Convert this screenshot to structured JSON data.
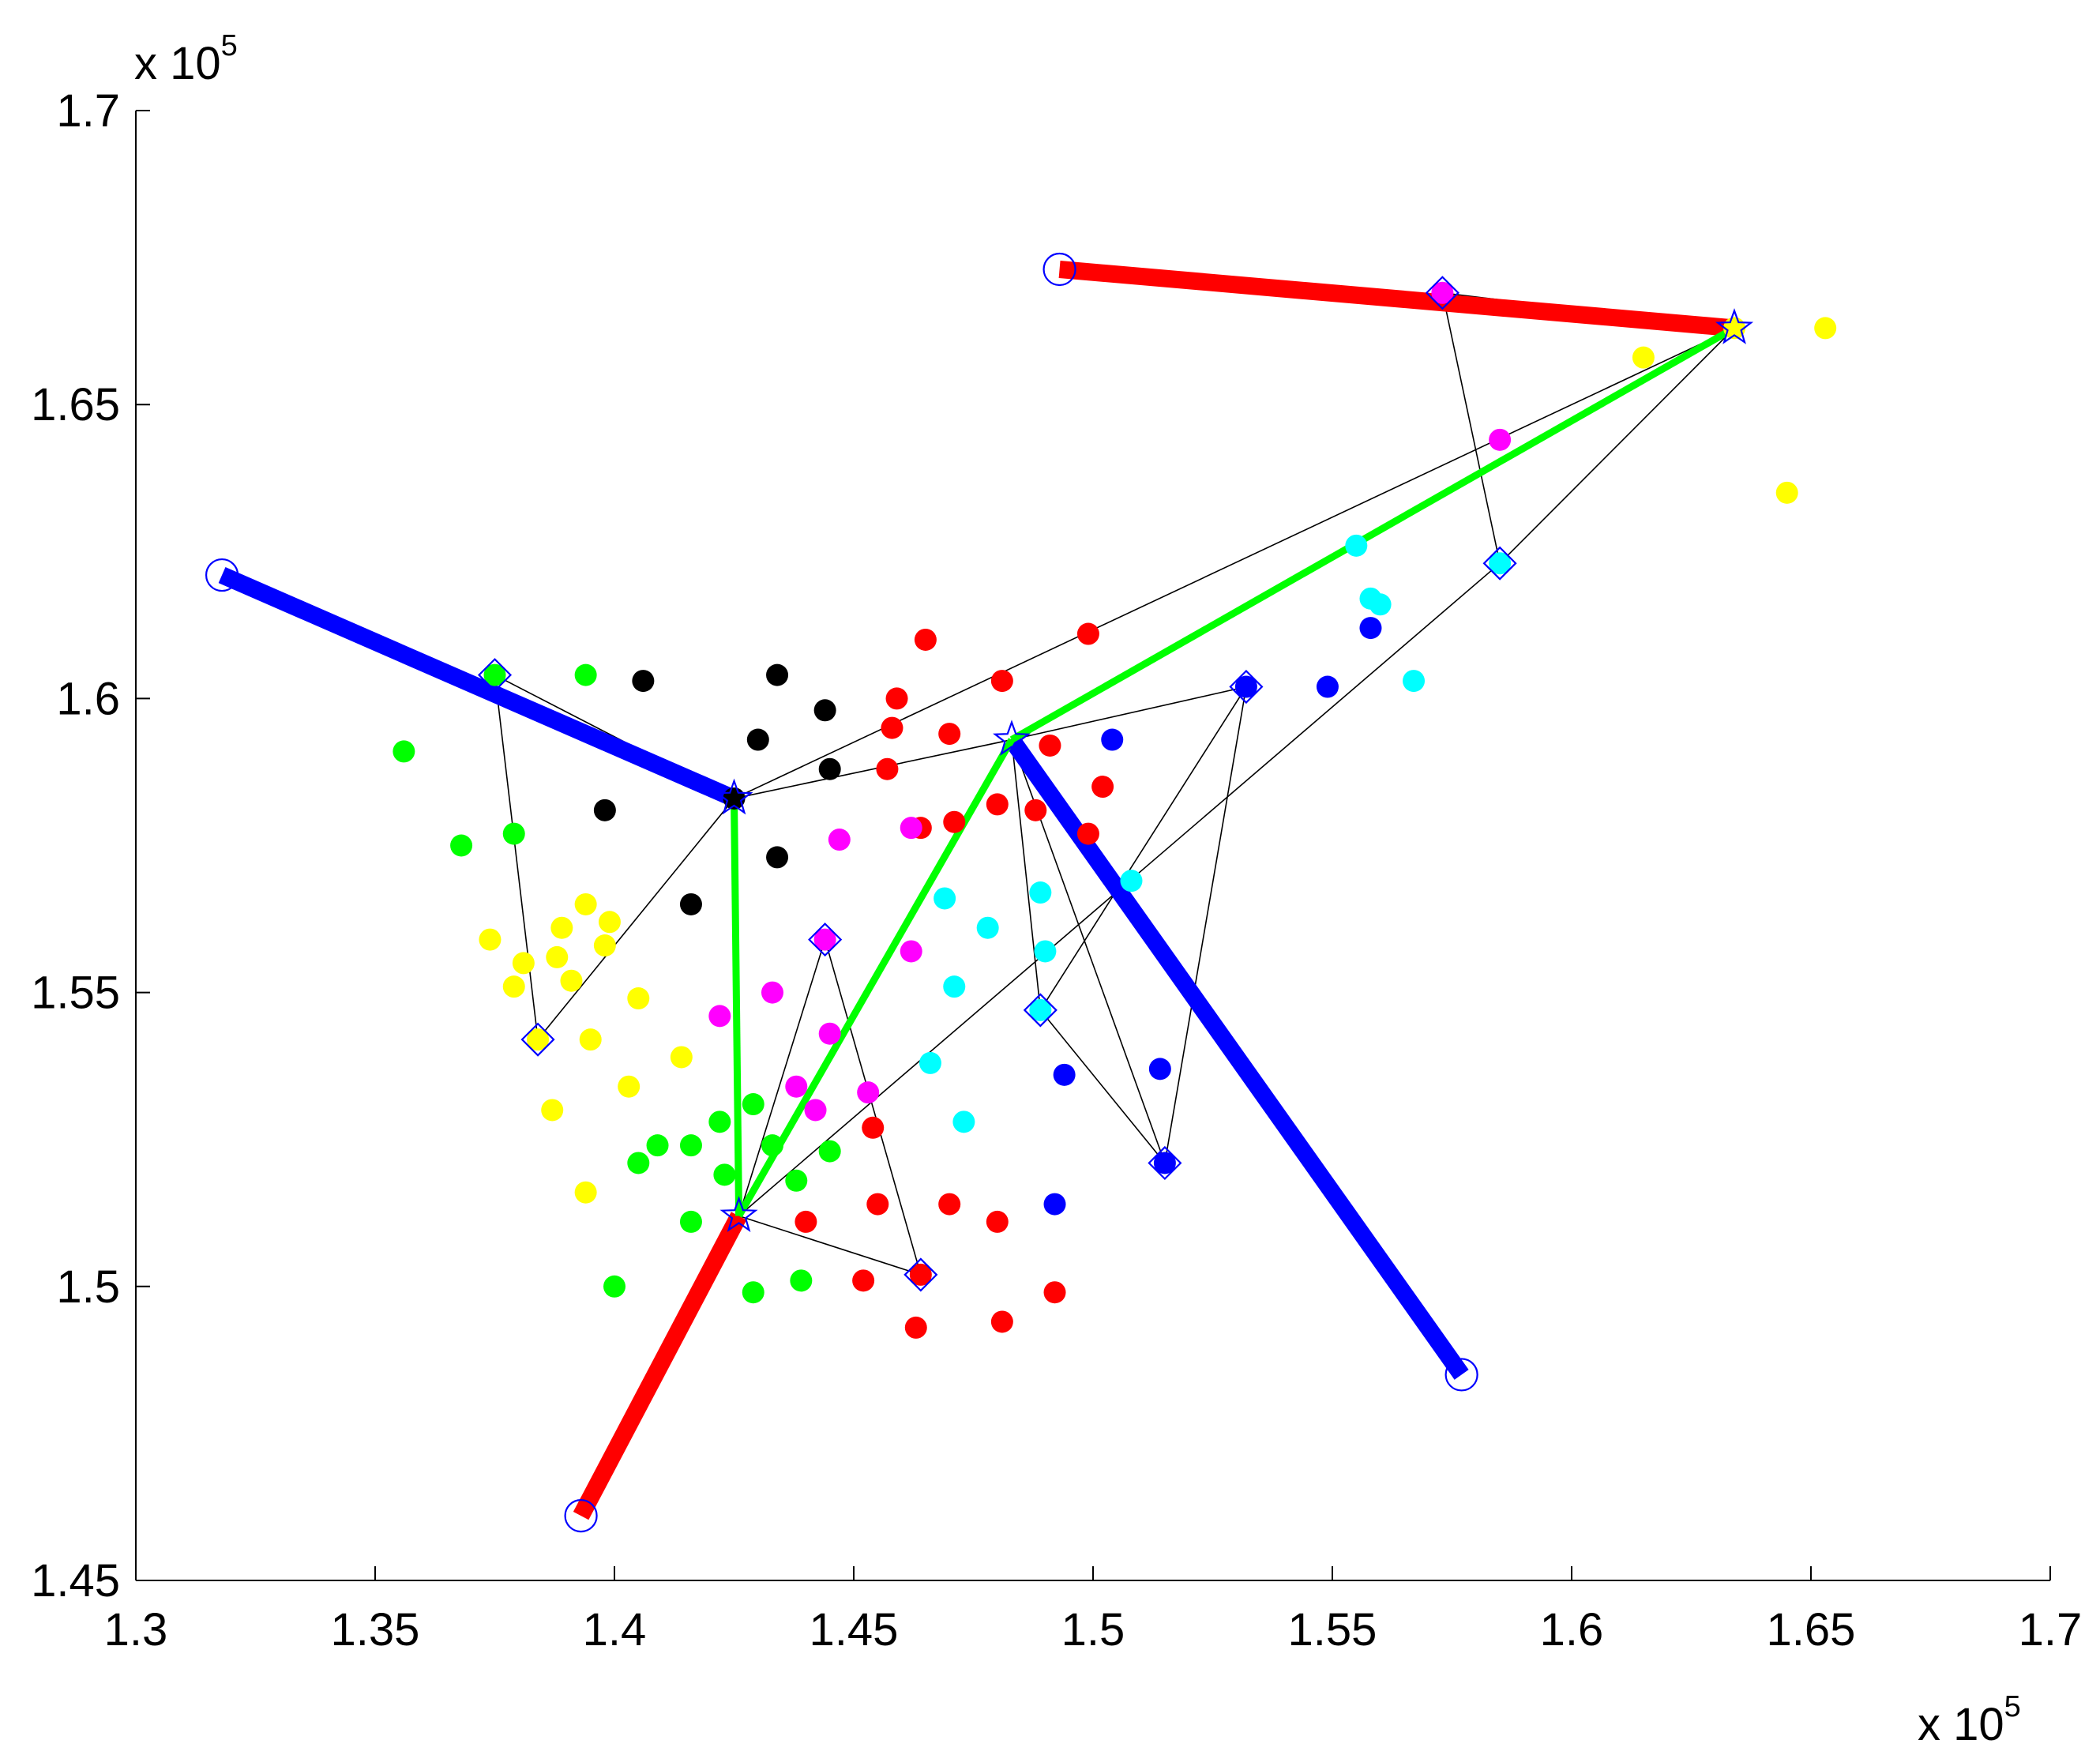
{
  "chart_data": {
    "type": "scatter",
    "title": "",
    "xlabel": "",
    "ylabel": "",
    "xlim": [
      130000,
      170000
    ],
    "ylim": [
      145000,
      170000
    ],
    "x_ticks": [
      130000,
      135000,
      140000,
      145000,
      150000,
      155000,
      160000,
      165000,
      170000
    ],
    "y_ticks": [
      145000,
      150000,
      155000,
      160000,
      165000,
      170000
    ],
    "x_tick_labels": [
      "1.3",
      "1.35",
      "1.4",
      "1.45",
      "1.5",
      "1.55",
      "1.6",
      "1.65",
      "1.7"
    ],
    "y_tick_labels": [
      "1.45",
      "1.5",
      "1.55",
      "1.6",
      "1.65",
      "1.7"
    ],
    "x_exponent": {
      "base": "x 10",
      "power": "5"
    },
    "y_exponent": {
      "base": "x 10",
      "power": "5"
    },
    "grid": false,
    "colors": {
      "red": "#ff0000",
      "blue": "#0000ff",
      "green": "#00ff00",
      "yellow": "#ffff00",
      "cyan": "#00ffff",
      "magenta": "#ff00ff",
      "black": "#000000",
      "marker": "#0000ff"
    },
    "points": {
      "red": [
        [
          146500,
          161000
        ],
        [
          145900,
          160000
        ],
        [
          145800,
          159500
        ],
        [
          145700,
          158800
        ],
        [
          147000,
          159400
        ],
        [
          148100,
          160300
        ],
        [
          149900,
          161100
        ],
        [
          149100,
          159200
        ],
        [
          150200,
          158500
        ],
        [
          148000,
          158200
        ],
        [
          147100,
          157900
        ],
        [
          148800,
          158100
        ],
        [
          149900,
          157700
        ],
        [
          146400,
          157800
        ],
        [
          145400,
          152700
        ],
        [
          145500,
          151400
        ],
        [
          147000,
          151400
        ],
        [
          148000,
          151100
        ],
        [
          144000,
          151100
        ],
        [
          149200,
          149900
        ],
        [
          148100,
          149400
        ],
        [
          146300,
          149300
        ],
        [
          145200,
          150100
        ],
        [
          146400,
          150200
        ]
      ],
      "blue": [
        [
          150400,
          159300
        ],
        [
          153200,
          160200
        ],
        [
          154900,
          160200
        ],
        [
          155800,
          161200
        ],
        [
          151400,
          153700
        ],
        [
          149400,
          153600
        ],
        [
          149200,
          151400
        ],
        [
          151500,
          152100
        ]
      ],
      "green": [
        [
          135600,
          159100
        ],
        [
          136800,
          157500
        ],
        [
          137500,
          160400
        ],
        [
          139400,
          160400
        ],
        [
          137900,
          157700
        ],
        [
          142200,
          152800
        ],
        [
          142300,
          151900
        ],
        [
          142900,
          153100
        ],
        [
          143300,
          152400
        ],
        [
          141600,
          152400
        ],
        [
          140900,
          152400
        ],
        [
          140500,
          152100
        ],
        [
          143800,
          151800
        ],
        [
          144500,
          152300
        ],
        [
          141600,
          151100
        ],
        [
          140000,
          150000
        ],
        [
          142900,
          149900
        ],
        [
          143900,
          150100
        ]
      ],
      "yellow": [
        [
          137400,
          155900
        ],
        [
          138100,
          155500
        ],
        [
          137900,
          155100
        ],
        [
          138800,
          155600
        ],
        [
          138900,
          156100
        ],
        [
          139100,
          155200
        ],
        [
          139400,
          156500
        ],
        [
          139900,
          156200
        ],
        [
          139800,
          155800
        ],
        [
          140500,
          154900
        ],
        [
          139500,
          154200
        ],
        [
          141400,
          153900
        ],
        [
          140300,
          153400
        ],
        [
          138700,
          153000
        ],
        [
          139400,
          151600
        ],
        [
          138400,
          154200
        ],
        [
          161500,
          165800
        ],
        [
          165300,
          166300
        ],
        [
          164500,
          163500
        ],
        [
          163400,
          166300
        ]
      ],
      "cyan": [
        [
          155500,
          162600
        ],
        [
          155800,
          161700
        ],
        [
          156000,
          161600
        ],
        [
          156700,
          160300
        ],
        [
          150800,
          156900
        ],
        [
          148900,
          156700
        ],
        [
          146900,
          156600
        ],
        [
          147800,
          156100
        ],
        [
          149000,
          155700
        ],
        [
          147100,
          155100
        ],
        [
          148900,
          154700
        ],
        [
          146600,
          153800
        ],
        [
          147300,
          152800
        ],
        [
          158500,
          162300
        ]
      ],
      "magenta": [
        [
          158500,
          164400
        ],
        [
          157300,
          166900
        ],
        [
          146200,
          157800
        ],
        [
          144700,
          157600
        ],
        [
          146200,
          155700
        ],
        [
          143300,
          155000
        ],
        [
          142200,
          154600
        ],
        [
          144500,
          154300
        ],
        [
          143800,
          153400
        ],
        [
          144200,
          153000
        ],
        [
          145300,
          153300
        ],
        [
          144400,
          155900
        ]
      ],
      "black": [
        [
          140600,
          160300
        ],
        [
          143400,
          160400
        ],
        [
          144400,
          159800
        ],
        [
          143000,
          159300
        ],
        [
          144500,
          158800
        ],
        [
          142500,
          158300
        ],
        [
          139800,
          158100
        ],
        [
          143400,
          157300
        ],
        [
          141600,
          156500
        ]
      ]
    },
    "thick_segments": [
      {
        "color": "red",
        "x": [
          149300,
          163400
        ],
        "y": [
          167300,
          166300
        ]
      },
      {
        "color": "red",
        "x": [
          139300,
          142600
        ],
        "y": [
          146100,
          151200
        ]
      },
      {
        "color": "blue",
        "x": [
          131800,
          142500
        ],
        "y": [
          162100,
          158300
        ]
      },
      {
        "color": "blue",
        "x": [
          148300,
          157700
        ],
        "y": [
          159300,
          148500
        ]
      },
      {
        "color": "green",
        "x": [
          142500,
          142600
        ],
        "y": [
          158300,
          151200
        ]
      },
      {
        "color": "green",
        "x": [
          142600,
          148300
        ],
        "y": [
          151200,
          159300
        ]
      },
      {
        "color": "green",
        "x": [
          148300,
          163400
        ],
        "y": [
          159300,
          166300
        ]
      }
    ],
    "thin_segments": [
      [
        [
          137500,
          160400
        ],
        [
          142500,
          158300
        ]
      ],
      [
        [
          137500,
          160400
        ],
        [
          138400,
          154200
        ]
      ],
      [
        [
          138400,
          154200
        ],
        [
          142500,
          158300
        ]
      ],
      [
        [
          142500,
          158300
        ],
        [
          163400,
          166300
        ]
      ],
      [
        [
          142500,
          158300
        ],
        [
          148300,
          159300
        ]
      ],
      [
        [
          148300,
          159300
        ],
        [
          153200,
          160200
        ]
      ],
      [
        [
          142600,
          151200
        ],
        [
          144400,
          155900
        ]
      ],
      [
        [
          144400,
          155900
        ],
        [
          146400,
          150200
        ]
      ],
      [
        [
          146400,
          150200
        ],
        [
          142600,
          151200
        ]
      ],
      [
        [
          142600,
          151200
        ],
        [
          158500,
          162300
        ]
      ],
      [
        [
          148300,
          159300
        ],
        [
          148900,
          154700
        ]
      ],
      [
        [
          148300,
          159300
        ],
        [
          151500,
          152100
        ]
      ],
      [
        [
          148900,
          154700
        ],
        [
          151500,
          152100
        ]
      ],
      [
        [
          151500,
          152100
        ],
        [
          153200,
          160200
        ]
      ],
      [
        [
          153200,
          160200
        ],
        [
          148900,
          154700
        ]
      ],
      [
        [
          157300,
          166900
        ],
        [
          158500,
          162300
        ]
      ],
      [
        [
          157300,
          166900
        ],
        [
          163400,
          166300
        ]
      ],
      [
        [
          158500,
          162300
        ],
        [
          163400,
          166300
        ]
      ]
    ],
    "circle_markers": [
      [
        149300,
        167300
      ],
      [
        131800,
        162100
      ],
      [
        139300,
        146100
      ],
      [
        157700,
        148500
      ]
    ],
    "diamond_markers": [
      [
        157300,
        166900
      ],
      [
        158500,
        162300
      ],
      [
        137500,
        160400
      ],
      [
        138400,
        154200
      ],
      [
        153200,
        160200
      ],
      [
        144400,
        155900
      ],
      [
        148900,
        154700
      ],
      [
        151500,
        152100
      ],
      [
        146400,
        150200
      ]
    ],
    "star_markers": [
      [
        163400,
        166300
      ],
      [
        142500,
        158300
      ],
      [
        148300,
        159300
      ],
      [
        142600,
        151200
      ]
    ]
  }
}
